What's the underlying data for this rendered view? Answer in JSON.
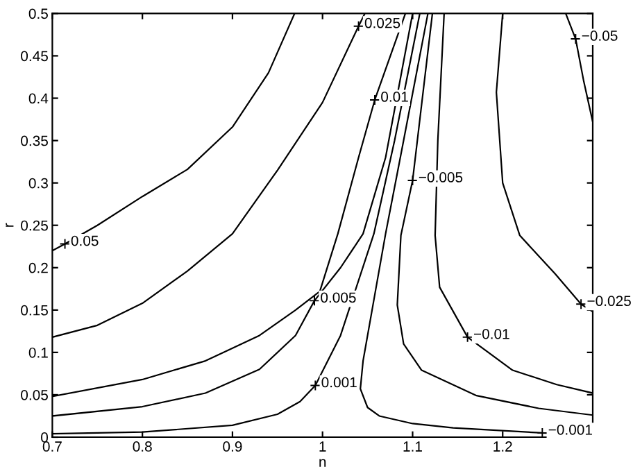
{
  "chart_data": {
    "type": "line",
    "xlabel": "n",
    "ylabel": "r",
    "xlim": [
      0.7,
      1.3
    ],
    "xticks": [
      0.7,
      0.8,
      0.9,
      1,
      1.1,
      1.2
    ],
    "ylim": [
      0,
      0.5
    ],
    "yticks": [
      0,
      0.05,
      0.1,
      0.15,
      0.2,
      0.25,
      0.3,
      0.35,
      0.4,
      0.45,
      0.5
    ],
    "grid": false,
    "legend": false,
    "line_style": "solid",
    "series": [
      {
        "color": "#000000",
        "x": [
          0.7,
          0.714,
          0.75,
          0.8,
          0.85,
          0.9,
          0.94,
          0.969
        ],
        "values": [
          0.22,
          0.228,
          0.25,
          0.284,
          0.316,
          0.366,
          0.43,
          0.5
        ]
      },
      {
        "color": "#000000",
        "x": [
          0.7,
          0.75,
          0.8,
          0.85,
          0.9,
          0.95,
          1.0,
          1.04,
          1.047
        ],
        "values": [
          0.118,
          0.132,
          0.158,
          0.196,
          0.24,
          0.315,
          0.395,
          0.485,
          0.5
        ]
      },
      {
        "color": "#000000",
        "x": [
          0.7,
          0.8,
          0.87,
          0.93,
          0.97,
          0.997,
          1.017,
          1.04,
          1.058,
          1.092
        ],
        "values": [
          0.048,
          0.068,
          0.09,
          0.12,
          0.15,
          0.172,
          0.24,
          0.33,
          0.398,
          0.5
        ]
      },
      {
        "color": "#000000",
        "x": [
          0.7,
          0.8,
          0.87,
          0.93,
          0.97,
          0.991,
          1.02,
          1.045,
          1.07,
          1.1
        ],
        "values": [
          0.025,
          0.036,
          0.052,
          0.08,
          0.12,
          0.161,
          0.2,
          0.24,
          0.33,
          0.5
        ]
      },
      {
        "color": "#000000",
        "x": [
          0.7,
          0.8,
          0.9,
          0.95,
          0.975,
          0.992,
          1.02,
          1.057,
          1.08,
          1.108
        ],
        "values": [
          0.004,
          0.006,
          0.014,
          0.027,
          0.042,
          0.061,
          0.12,
          0.24,
          0.35,
          0.5
        ]
      },
      {
        "color": "#000000",
        "x": [
          1.117,
          1.09,
          1.07,
          1.055,
          1.045,
          1.042,
          1.05,
          1.063,
          1.1,
          1.145,
          1.244,
          1.3
        ],
        "values": [
          0.5,
          0.35,
          0.24,
          0.15,
          0.09,
          0.057,
          0.035,
          0.025,
          0.016,
          0.011,
          0.005,
          0.003
        ]
      },
      {
        "color": "#000000",
        "x": [
          1.122,
          1.1,
          1.087,
          1.083,
          1.09,
          1.11,
          1.171,
          1.24,
          1.3
        ],
        "values": [
          0.5,
          0.303,
          0.238,
          0.156,
          0.11,
          0.079,
          0.049,
          0.034,
          0.026
        ]
      },
      {
        "color": "#000000",
        "x": [
          1.135,
          1.128,
          1.125,
          1.13,
          1.161,
          1.211,
          1.26,
          1.3
        ],
        "values": [
          0.5,
          0.35,
          0.238,
          0.177,
          0.118,
          0.079,
          0.062,
          0.052
        ]
      },
      {
        "color": "#000000",
        "x": [
          1.2,
          1.193,
          1.2,
          1.219,
          1.258,
          1.287,
          1.3
        ],
        "values": [
          0.5,
          0.407,
          0.3,
          0.238,
          0.193,
          0.157,
          0.148
        ]
      },
      {
        "color": "#000000",
        "x": [
          1.27,
          1.281,
          1.29,
          1.3
        ],
        "values": [
          0.5,
          0.47,
          0.42,
          0.372
        ]
      }
    ],
    "annotations": [
      {
        "text": "0.05",
        "x": 0.714,
        "y": 0.228
      },
      {
        "text": "0.025",
        "x": 1.04,
        "y": 0.485
      },
      {
        "text": "0.01",
        "x": 1.058,
        "y": 0.398
      },
      {
        "text": "0.005",
        "x": 0.991,
        "y": 0.161
      },
      {
        "text": "0.001",
        "x": 0.992,
        "y": 0.061
      },
      {
        "text": "−0.001",
        "x": 1.244,
        "y": 0.005
      },
      {
        "text": "−0.005",
        "x": 1.1,
        "y": 0.303
      },
      {
        "text": "−0.01",
        "x": 1.161,
        "y": 0.118
      },
      {
        "text": "−0.025",
        "x": 1.287,
        "y": 0.157
      },
      {
        "text": "−0.05",
        "x": 1.281,
        "y": 0.47
      }
    ]
  }
}
